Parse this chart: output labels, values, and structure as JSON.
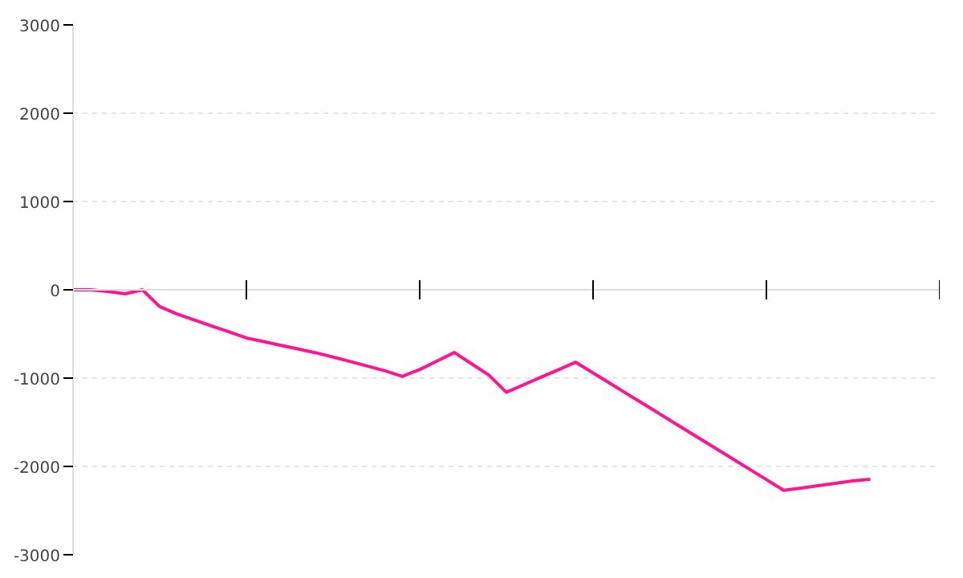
{
  "chart_data": {
    "type": "line",
    "categories": [
      null,
      null,
      null,
      null,
      null,
      null,
      null,
      null,
      null,
      null,
      null,
      null,
      null,
      null,
      null,
      null,
      null,
      null,
      null,
      null,
      null,
      null,
      null,
      null,
      null,
      null,
      null,
      null,
      null,
      null,
      null,
      null,
      null,
      null,
      null,
      null,
      null,
      null,
      null,
      null,
      null,
      null,
      null,
      null,
      null,
      null,
      null,
      null,
      null,
      null,
      null
    ],
    "series": [
      {
        "color": "#ff1493",
        "values": [
          0,
          0,
          -18,
          -45,
          0,
          -190,
          -274,
          -342,
          -410,
          -477,
          -545,
          -587,
          -629,
          -671,
          -713,
          -761,
          -813,
          -865,
          -917,
          -980,
          -903,
          -807,
          -710,
          -839,
          -967,
          -1160,
          -1075,
          -990,
          -905,
          -820,
          -941,
          -1062,
          -1183,
          -1303,
          -1424,
          -1545,
          -1666,
          -1787,
          -1907,
          -2028,
          -2149,
          -2270,
          -2245,
          -2218,
          -2191,
          -2164,
          -2145,
          null,
          null,
          null,
          null
        ]
      }
    ],
    "ylim": [
      -3000,
      3000
    ],
    "yticks": [
      -3000,
      -2000,
      -1000,
      0,
      1000,
      2000,
      3000
    ],
    "grid": "y",
    "marker": "none",
    "line_style": "solid"
  }
}
